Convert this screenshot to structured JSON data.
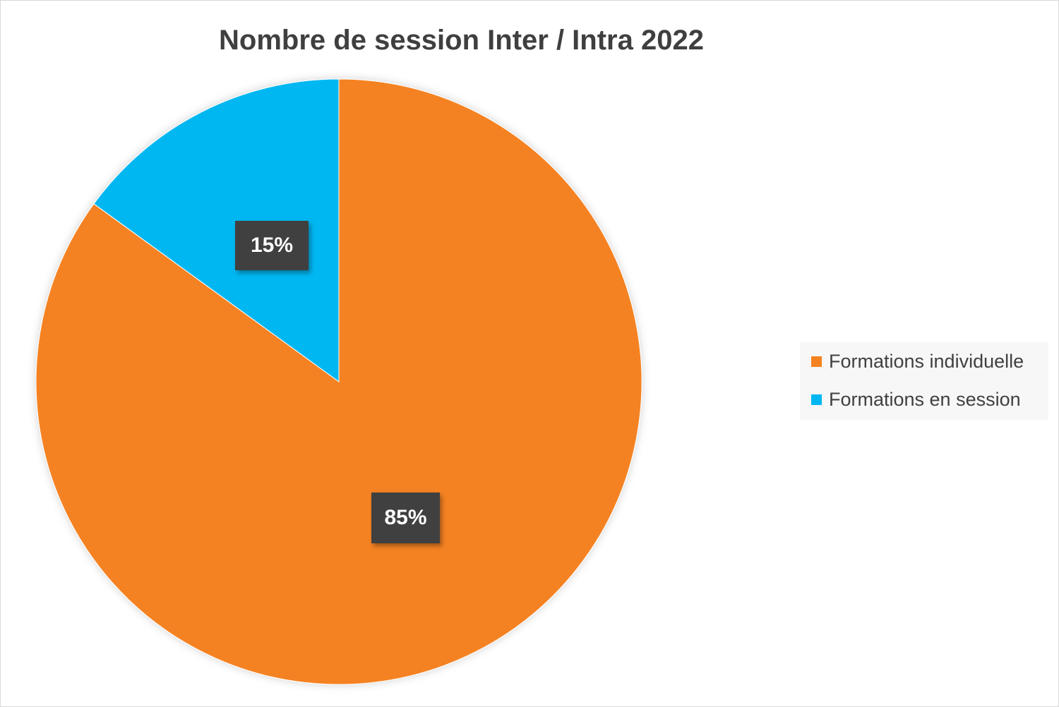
{
  "chart_data": {
    "type": "pie",
    "title": "Nombre de session Inter / Intra 2022",
    "slices": [
      {
        "name": "Formations individuelle",
        "value": 85,
        "label": "85%",
        "color": "#F58220"
      },
      {
        "name": "Formations en session",
        "value": 15,
        "label": "15%",
        "color": "#00B7F1"
      }
    ],
    "start_angle_deg": 0,
    "direction": "clockwise",
    "legend_position": "right",
    "legend": [
      "Formations individuelle",
      "Formations en session"
    ]
  }
}
